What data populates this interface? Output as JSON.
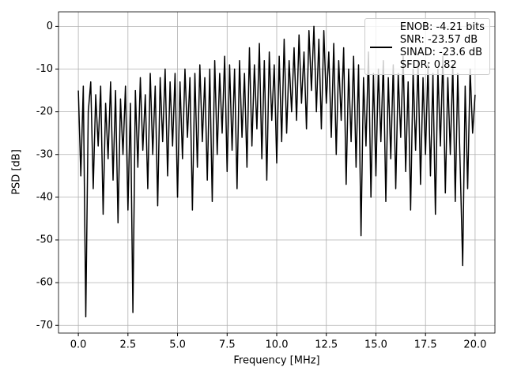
{
  "chart_data": {
    "type": "line",
    "xlabel": "Frequency [MHz]",
    "ylabel": "PSD [dB]",
    "xlim": [
      -1,
      21
    ],
    "ylim": [
      -71.8,
      3.4
    ],
    "xticks": [
      {
        "value": 0,
        "label": "0.0"
      },
      2.5,
      {
        "value": 5,
        "label": "5.0"
      },
      7.5,
      {
        "value": 10,
        "label": "10.0"
      },
      12.5,
      {
        "value": 15,
        "label": "15.0"
      },
      17.5,
      {
        "value": 20,
        "label": "20.0"
      }
    ],
    "yticks": [
      0,
      -10,
      -20,
      -30,
      -40,
      -50,
      -60,
      -70
    ],
    "grid": true,
    "legend": "upper right",
    "x": [
      0,
      0.125,
      0.25,
      0.375,
      0.5,
      0.625,
      0.75,
      0.875,
      1,
      1.125,
      1.25,
      1.375,
      1.5,
      1.625,
      1.75,
      1.875,
      2,
      2.125,
      2.25,
      2.375,
      2.5,
      2.625,
      2.75,
      2.875,
      3,
      3.125,
      3.25,
      3.375,
      3.5,
      3.625,
      3.75,
      3.875,
      4,
      4.125,
      4.25,
      4.375,
      4.5,
      4.625,
      4.75,
      4.875,
      5,
      5.125,
      5.25,
      5.375,
      5.5,
      5.625,
      5.75,
      5.875,
      6,
      6.125,
      6.25,
      6.375,
      6.5,
      6.625,
      6.75,
      6.875,
      7,
      7.125,
      7.25,
      7.375,
      7.5,
      7.625,
      7.75,
      7.875,
      8,
      8.125,
      8.25,
      8.375,
      8.5,
      8.625,
      8.75,
      8.875,
      9,
      9.125,
      9.25,
      9.375,
      9.5,
      9.625,
      9.75,
      9.875,
      10,
      10.125,
      10.25,
      10.375,
      10.5,
      10.625,
      10.75,
      10.875,
      11,
      11.125,
      11.25,
      11.375,
      11.5,
      11.625,
      11.75,
      11.875,
      12,
      12.125,
      12.25,
      12.375,
      12.5,
      12.625,
      12.75,
      12.875,
      13,
      13.125,
      13.25,
      13.375,
      13.5,
      13.625,
      13.75,
      13.875,
      14,
      14.125,
      14.25,
      14.375,
      14.5,
      14.625,
      14.75,
      14.875,
      15,
      15.125,
      15.25,
      15.375,
      15.5,
      15.625,
      15.75,
      15.875,
      16,
      16.125,
      16.25,
      16.375,
      16.5,
      16.625,
      16.75,
      16.875,
      17,
      17.125,
      17.25,
      17.375,
      17.5,
      17.625,
      17.75,
      17.875,
      18,
      18.125,
      18.25,
      18.375,
      18.5,
      18.625,
      18.75,
      18.875,
      19,
      19.125,
      19.25,
      19.375,
      19.5,
      19.625,
      19.75,
      19.875,
      20
    ],
    "series": [
      {
        "name": "ENOB: -4.21 bits\nSNR: -23.57 dB\nSINAD: -23.6 dB\nSFDR: 0.82",
        "color": "#000000",
        "values": [
          -15,
          -35,
          -14,
          -68,
          -20,
          -13,
          -38,
          -16,
          -28,
          -14,
          -44,
          -18,
          -31,
          -13,
          -36,
          -15,
          -46,
          -17,
          -30,
          -14,
          -43,
          -18,
          -67,
          -15,
          -33,
          -12,
          -29,
          -16,
          -38,
          -11,
          -30,
          -14,
          -42,
          -12,
          -27,
          -10,
          -35,
          -13,
          -28,
          -11,
          -40,
          -13,
          -31,
          -10,
          -26,
          -12,
          -43,
          -11,
          -33,
          -9,
          -27,
          -12,
          -36,
          -10,
          -41,
          -8,
          -30,
          -11,
          -25,
          -7,
          -34,
          -9,
          -29,
          -10,
          -38,
          -8,
          -26,
          -11,
          -33,
          -5,
          -28,
          -9,
          -24,
          -4,
          -31,
          -8,
          -36,
          -6,
          -22,
          -9,
          -32,
          -7,
          -27,
          -3,
          -25,
          -8,
          -20,
          -5,
          -22,
          -2,
          -18,
          -6,
          -24,
          -1,
          -15,
          0,
          -20,
          -3,
          -24,
          -1,
          -18,
          -6,
          -26,
          -4,
          -30,
          -8,
          -22,
          -5,
          -37,
          -10,
          -27,
          -7,
          -33,
          -9,
          -49,
          -12,
          -28,
          -6,
          -40,
          -11,
          -35,
          -10,
          -27,
          -8,
          -41,
          -12,
          -31,
          -9,
          -38,
          -11,
          -26,
          -7,
          -34,
          -13,
          -43,
          -10,
          -29,
          -8,
          -37,
          -12,
          -30,
          -9,
          -35,
          -11,
          -44,
          -10,
          -28,
          -7,
          -39,
          -12,
          -30,
          -9,
          -41,
          -11,
          -33,
          -56,
          -14,
          -38,
          -10,
          -25,
          -16
        ]
      }
    ]
  }
}
